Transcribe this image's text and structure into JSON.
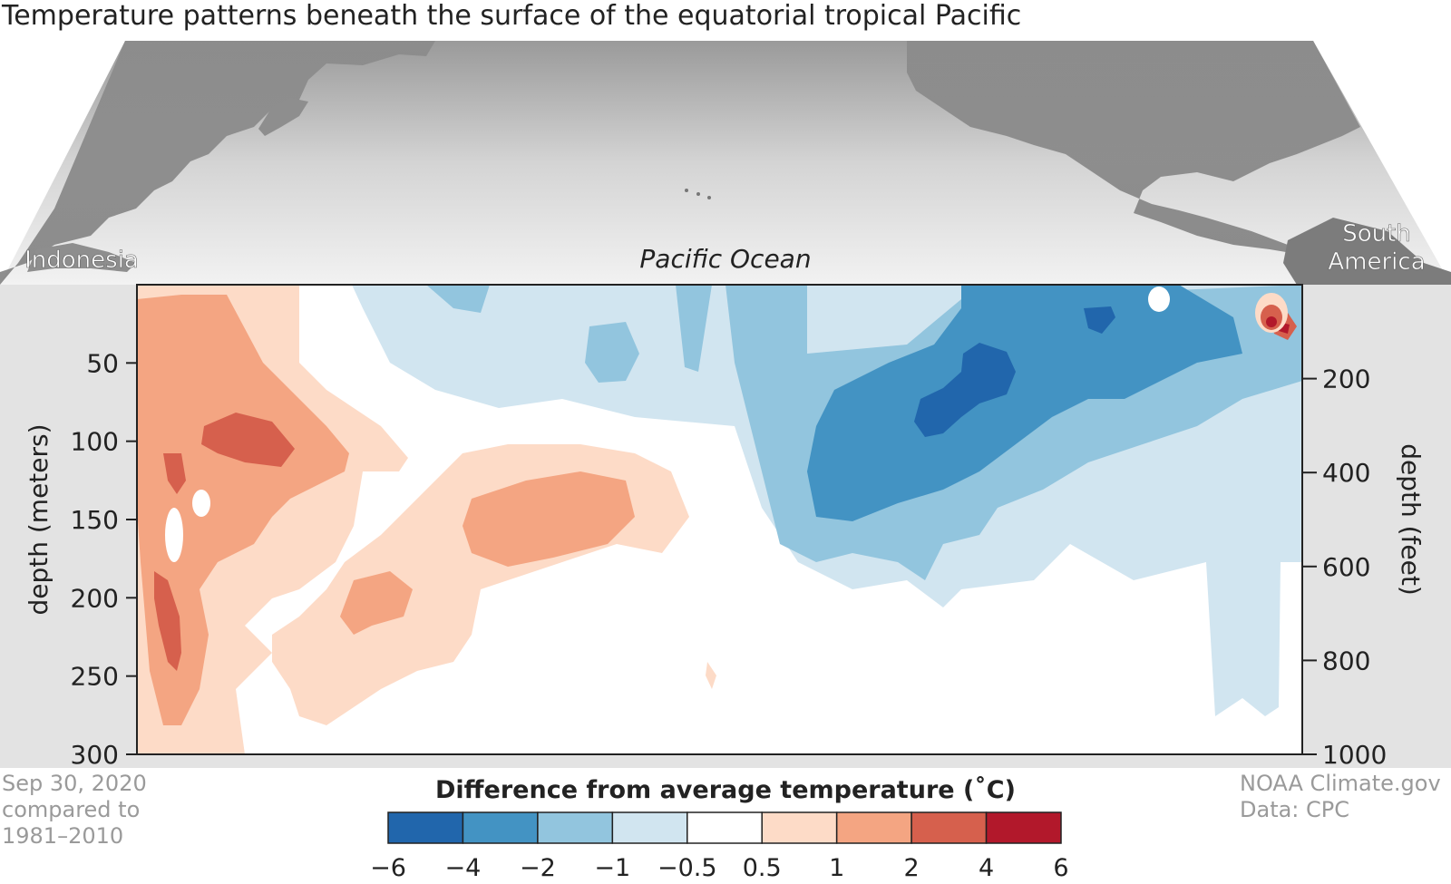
{
  "title": "Temperature patterns beneath the surface of the equatorial tropical Pacific",
  "map_labels": {
    "left": "Indonesia",
    "center": "Pacific Ocean",
    "right_line1": "South",
    "right_line2": "America"
  },
  "footer": {
    "date_line1": "Sep 30, 2020",
    "date_line2": "compared to",
    "date_line3": "1981–2010",
    "credit_line1": "NOAA Climate.gov",
    "credit_line2": "Data: CPC"
  },
  "chart_data": {
    "type": "heatmap",
    "title": "Temperature patterns beneath the surface of the equatorial tropical Pacific",
    "left_axis": {
      "label": "depth (meters)",
      "ticks": [
        50,
        100,
        150,
        200,
        250,
        300
      ],
      "range": [
        0,
        300
      ],
      "inverted": true
    },
    "right_axis": {
      "label": "depth (feet)",
      "ticks": [
        200,
        400,
        600,
        800,
        1000
      ],
      "range": [
        0,
        1000
      ],
      "inverted": true
    },
    "x_extent": {
      "left": "Indonesia",
      "right": "South America",
      "label": "Pacific Ocean"
    },
    "colorbar": {
      "title": "Difference from average temperature (˚C)",
      "tick_labels": [
        "−6",
        "−4",
        "−2",
        "−1",
        "−0.5",
        "0.5",
        "1",
        "2",
        "4",
        "6"
      ],
      "bins": [
        {
          "range": "-6 to -4",
          "color": "#2166ac"
        },
        {
          "range": "-4 to -2",
          "color": "#4393c3"
        },
        {
          "range": "-2 to -1",
          "color": "#92c5de"
        },
        {
          "range": "-1 to -0.5",
          "color": "#d1e5f0"
        },
        {
          "range": "-0.5 to 0.5",
          "color": "#ffffff"
        },
        {
          "range": "0.5 to 1",
          "color": "#fddbc7"
        },
        {
          "range": "1 to 2",
          "color": "#f4a582"
        },
        {
          "range": "2 to 4",
          "color": "#d6604d"
        },
        {
          "range": "4 to 6",
          "color": "#b2182b"
        }
      ]
    },
    "anomaly_regions": [
      {
        "level": "-1 to -0.5",
        "color": "#d1e5f0",
        "where": "upper central and eastern Pacific, 0-200 m; eastern column to 280 m"
      },
      {
        "level": "-2 to -1",
        "color": "#92c5de",
        "where": "central-east Pacific, 0-200 m"
      },
      {
        "level": "-4 to -2",
        "color": "#4393c3",
        "where": "east Pacific, 0-150 m, tilting upward to the east"
      },
      {
        "level": "-6 to -4",
        "color": "#2166ac",
        "where": "east Pacific core near 60-100 m"
      },
      {
        "level": "0.5 to 1",
        "color": "#fddbc7",
        "where": "western Pacific 0-300 m, central Pacific 100-270 m"
      },
      {
        "level": "1 to 2",
        "color": "#f4a582",
        "where": "western Pacific 0-280 m; central Pacific 120-170 m"
      },
      {
        "level": "2 to 4",
        "color": "#d6604d",
        "where": "western Pacific near 100 m and 200-250 m; far east surface"
      }
    ]
  }
}
